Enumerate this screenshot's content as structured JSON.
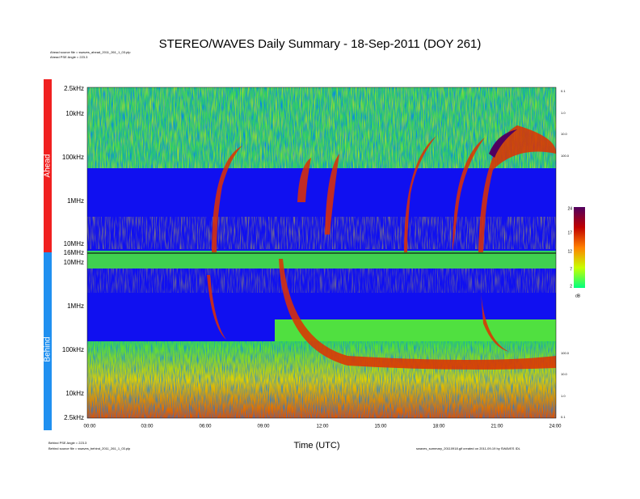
{
  "header": {
    "title": "STEREO/WAVES Daily Summary - 18-Sep-2011 (DOY 261)",
    "ahead_source": "Ahead source file = swaves_ahead_2011_261_1_03.plp",
    "ahead_angle": "Ahead PSE Angle = 223.3",
    "behind_angle": "Behind PSE Angle = 223.3",
    "behind_source": "Behind source file = swaves_behind_2011_261_1_03.plp",
    "footer_note": "swaves_summary_20110918.gif created on 2011-09-19 by SWAVES IDL"
  },
  "panels": {
    "ahead": "Ahead",
    "behind": "Behind"
  },
  "axes": {
    "x_label": "Time (UTC)",
    "x_ticks": [
      "00:00",
      "03:00",
      "06:00",
      "09:00",
      "12:00",
      "15:00",
      "18:00",
      "21:00",
      "24:00"
    ],
    "y_ticks": [
      "2.5kHz",
      "10kHz",
      "100kHz",
      "1MHz",
      "10MHz",
      "16MHz",
      "10MHz",
      "1MHz",
      "100kHz",
      "10kHz",
      "2.5kHz"
    ],
    "right_ticks_ahead": [
      "0.1",
      "1.0",
      "10.0",
      "100.0"
    ],
    "right_ticks_behind": [
      "100.0",
      "10.0",
      "1.0",
      "0.1"
    ]
  },
  "colorbar": {
    "ticks": [
      "24",
      "17",
      "12",
      "7",
      "2"
    ],
    "unit": "dB"
  }
}
